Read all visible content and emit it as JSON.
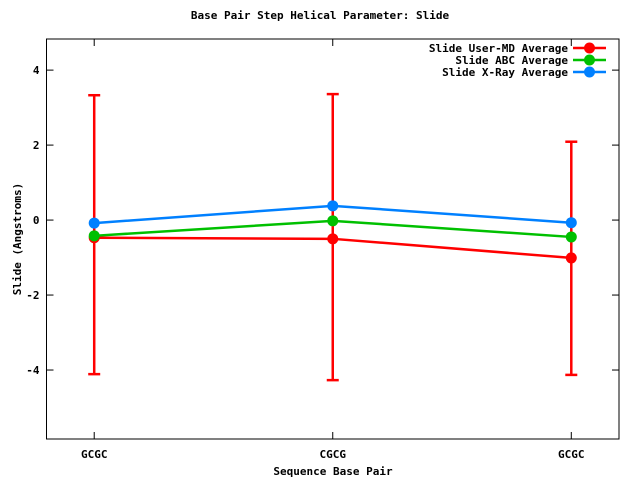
{
  "chart_data": {
    "type": "line",
    "title": "Base Pair Step Helical Parameter: Slide",
    "xlabel": "Sequence Base Pair",
    "ylabel": "Slide (Angstroms)",
    "categories": [
      "GCGC",
      "CGCG",
      "GCGC"
    ],
    "x": [
      1,
      2,
      3
    ],
    "xlim": [
      0.8,
      3.2
    ],
    "ylim": [
      -5.84,
      4.83
    ],
    "y_ticks": [
      4,
      2,
      0,
      -2,
      -4
    ],
    "grid": false,
    "legend_position": "top-right-inside",
    "axis_color": "#000000",
    "background_color": "#ffffff",
    "series": [
      {
        "name": "Slide User-MD Average",
        "color": "#ff0000",
        "marker": "filled-circle",
        "values": [
          -0.47,
          -0.5,
          -1.01
        ],
        "error_low": [
          -4.11,
          -4.27,
          -4.13
        ],
        "error_high": [
          3.33,
          3.36,
          2.09
        ]
      },
      {
        "name": "Slide ABC Average",
        "color": "#00c000",
        "marker": "filled-circle",
        "values": [
          -0.42,
          -0.02,
          -0.45
        ]
      },
      {
        "name": "Slide X-Ray Average",
        "color": "#0080ff",
        "marker": "filled-circle",
        "values": [
          -0.08,
          0.38,
          -0.07
        ]
      }
    ]
  }
}
